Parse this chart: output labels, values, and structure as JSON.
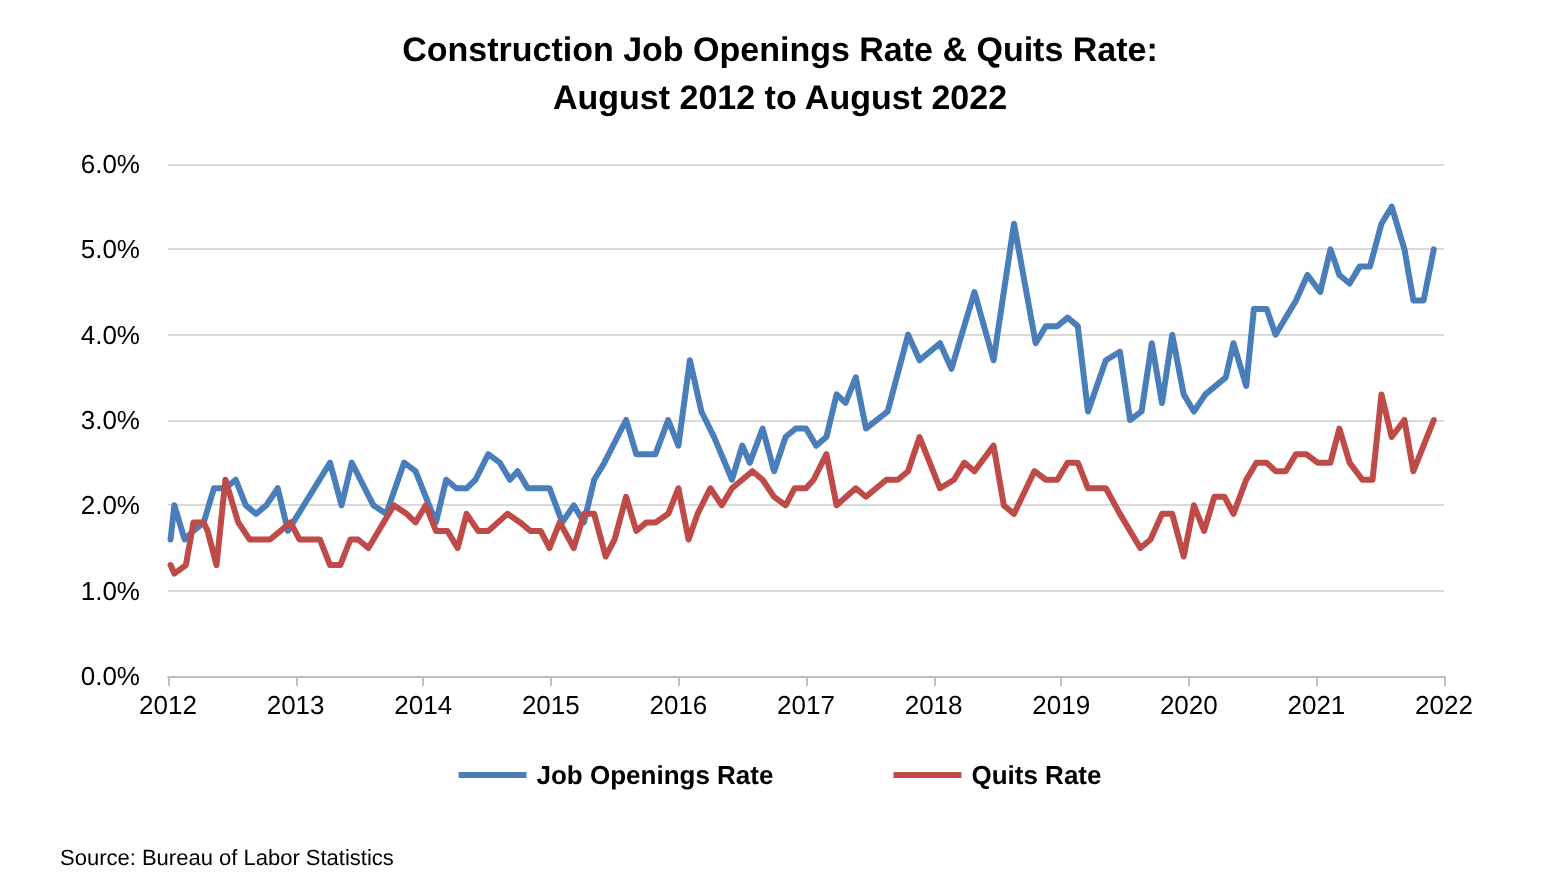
{
  "chart_data": {
    "type": "line",
    "title": "Construction Job Openings Rate & Quits Rate:\nAugust 2012 to August 2022",
    "xlim": [
      2012,
      2022
    ],
    "xticks": [
      2012,
      2013,
      2014,
      2015,
      2016,
      2017,
      2018,
      2019,
      2020,
      2021,
      2022
    ],
    "ylim": [
      0,
      6
    ],
    "yticks": [
      {
        "value": 0,
        "label": "0.0%"
      },
      {
        "value": 1,
        "label": "1.0%"
      },
      {
        "value": 2,
        "label": "2.0%"
      },
      {
        "value": 3,
        "label": "3.0%"
      },
      {
        "value": 4,
        "label": "4.0%"
      },
      {
        "value": 5,
        "label": "5.0%"
      },
      {
        "value": 6,
        "label": "6.0%"
      }
    ],
    "grid": "y",
    "legend": "bottom",
    "marker": "none",
    "line_style": "solid",
    "annotations": [
      "Source: Bureau of Labor Statistics"
    ],
    "series": [
      {
        "name": "Job Openings Rate",
        "color": "#4a7ebb",
        "x": [
          2012.02,
          2012.05,
          2012.13,
          2012.2,
          2012.28,
          2012.36,
          2012.45,
          2012.53,
          2012.61,
          2012.69,
          2012.77,
          2012.86,
          2012.94,
          2013.27,
          2013.36,
          2013.44,
          2013.61,
          2013.71,
          2013.85,
          2013.94,
          2014.1,
          2014.18,
          2014.26,
          2014.34,
          2014.41,
          2014.51,
          2014.6,
          2014.68,
          2014.74,
          2014.82,
          2014.99,
          2015.09,
          2015.18,
          2015.26,
          2015.34,
          2015.42,
          2015.59,
          2015.67,
          2015.82,
          2015.92,
          2016.0,
          2016.09,
          2016.18,
          2016.28,
          2016.42,
          2016.5,
          2016.56,
          2016.66,
          2016.75,
          2016.84,
          2016.92,
          2017.0,
          2017.08,
          2017.16,
          2017.24,
          2017.31,
          2017.39,
          2017.47,
          2017.64,
          2017.8,
          2017.89,
          2018.05,
          2018.14,
          2018.32,
          2018.47,
          2018.63,
          2018.8,
          2018.88,
          2018.97,
          2019.05,
          2019.13,
          2019.21,
          2019.35,
          2019.46,
          2019.54,
          2019.63,
          2019.71,
          2019.79,
          2019.87,
          2019.96,
          2020.04,
          2020.13,
          2020.29,
          2020.35,
          2020.45,
          2020.51,
          2020.61,
          2020.68,
          2020.84,
          2020.93,
          2021.03,
          2021.11,
          2021.18,
          2021.26,
          2021.34,
          2021.42,
          2021.51,
          2021.59,
          2021.69,
          2021.76,
          2021.84,
          2021.92
        ],
        "values": [
          1.6,
          2.0,
          1.6,
          1.7,
          1.8,
          2.2,
          2.2,
          2.3,
          2.0,
          1.9,
          2.0,
          2.2,
          1.7,
          2.5,
          2.0,
          2.5,
          2.0,
          1.9,
          2.5,
          2.4,
          1.8,
          2.3,
          2.2,
          2.2,
          2.3,
          2.6,
          2.5,
          2.3,
          2.4,
          2.2,
          2.2,
          1.8,
          2.0,
          1.8,
          2.3,
          2.5,
          3.0,
          2.6,
          2.6,
          3.0,
          2.7,
          3.7,
          3.1,
          2.8,
          2.3,
          2.7,
          2.5,
          2.9,
          2.4,
          2.8,
          2.9,
          2.9,
          2.7,
          2.8,
          3.3,
          3.2,
          3.5,
          2.9,
          3.1,
          4.0,
          3.7,
          3.9,
          3.6,
          4.5,
          3.7,
          5.3,
          3.9,
          4.1,
          4.1,
          4.2,
          4.1,
          3.1,
          3.7,
          3.8,
          3.0,
          3.1,
          3.9,
          3.2,
          4.0,
          3.3,
          3.1,
          3.3,
          3.5,
          3.9,
          3.4,
          4.3,
          4.3,
          4.0,
          4.4,
          4.7,
          4.5,
          5.0,
          4.7,
          4.6,
          4.8,
          4.8,
          5.3,
          5.5,
          5.0,
          4.4,
          4.4,
          5.0
        ]
      },
      {
        "name": "Quits Rate",
        "color": "#be4b48",
        "x": [
          2012.02,
          2012.05,
          2012.14,
          2012.2,
          2012.28,
          2012.31,
          2012.38,
          2012.45,
          2012.55,
          2012.64,
          2012.8,
          2012.88,
          2012.96,
          2013.03,
          2013.19,
          2013.27,
          2013.35,
          2013.43,
          2013.49,
          2013.57,
          2013.77,
          2013.87,
          2013.94,
          2014.02,
          2014.1,
          2014.19,
          2014.27,
          2014.34,
          2014.43,
          2014.51,
          2014.66,
          2014.76,
          2014.84,
          2014.92,
          2014.99,
          2015.07,
          2015.18,
          2015.26,
          2015.34,
          2015.43,
          2015.5,
          2015.59,
          2015.67,
          2015.75,
          2015.82,
          2015.92,
          2016.0,
          2016.08,
          2016.15,
          2016.25,
          2016.34,
          2016.42,
          2016.5,
          2016.58,
          2016.66,
          2016.75,
          2016.84,
          2016.91,
          2017.0,
          2017.06,
          2017.16,
          2017.24,
          2017.39,
          2017.47,
          2017.63,
          2017.72,
          2017.8,
          2017.89,
          2018.05,
          2018.16,
          2018.24,
          2018.32,
          2018.47,
          2018.55,
          2018.63,
          2018.79,
          2018.88,
          2018.97,
          2019.05,
          2019.13,
          2019.21,
          2019.35,
          2019.46,
          2019.62,
          2019.7,
          2019.79,
          2019.87,
          2019.96,
          2020.04,
          2020.12,
          2020.2,
          2020.28,
          2020.35,
          2020.45,
          2020.53,
          2020.61,
          2020.68,
          2020.76,
          2020.84,
          2020.92,
          2021.01,
          2021.11,
          2021.18,
          2021.26,
          2021.36,
          2021.44,
          2021.51,
          2021.59,
          2021.69,
          2021.76,
          2021.84,
          2021.92
        ],
        "values": [
          1.3,
          1.2,
          1.3,
          1.8,
          1.8,
          1.7,
          1.3,
          2.3,
          1.8,
          1.6,
          1.6,
          1.7,
          1.8,
          1.6,
          1.6,
          1.3,
          1.3,
          1.6,
          1.6,
          1.5,
          2.0,
          1.9,
          1.8,
          2.0,
          1.7,
          1.7,
          1.5,
          1.9,
          1.7,
          1.7,
          1.9,
          1.8,
          1.7,
          1.7,
          1.5,
          1.8,
          1.5,
          1.9,
          1.9,
          1.4,
          1.6,
          2.1,
          1.7,
          1.8,
          1.8,
          1.9,
          2.2,
          1.6,
          1.9,
          2.2,
          2.0,
          2.2,
          2.3,
          2.4,
          2.3,
          2.1,
          2.0,
          2.2,
          2.2,
          2.3,
          2.6,
          2.0,
          2.2,
          2.1,
          2.3,
          2.3,
          2.4,
          2.8,
          2.2,
          2.3,
          2.5,
          2.4,
          2.7,
          2.0,
          1.9,
          2.4,
          2.3,
          2.3,
          2.5,
          2.5,
          2.2,
          2.2,
          1.9,
          1.5,
          1.6,
          1.9,
          1.9,
          1.4,
          2.0,
          1.7,
          2.1,
          2.1,
          1.9,
          2.3,
          2.5,
          2.5,
          2.4,
          2.4,
          2.6,
          2.6,
          2.5,
          2.5,
          2.9,
          2.5,
          2.3,
          2.3,
          3.3,
          2.8,
          3.0,
          2.4,
          2.7,
          3.0
        ]
      }
    ]
  }
}
